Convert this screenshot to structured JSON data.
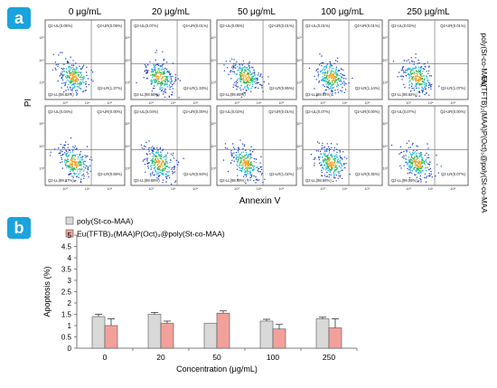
{
  "panel_a": {
    "label": "a",
    "concentrations": [
      "0 μg/mL",
      "20 μg/mL",
      "50 μg/mL",
      "100 μg/mL",
      "250 μg/mL"
    ],
    "row_labels": [
      "poly(St-co-MAA)",
      "Eu(TFTB)₂(MAA)P(Oct)₃@poly(St-co-MAA)"
    ],
    "y_label": "PI",
    "x_label": "Annexin V",
    "quadrant_prefixes": [
      "Q2-UL",
      "Q2-UR",
      "Q2-LL",
      "Q2-LR"
    ],
    "quadrants": [
      [
        {
          "UL": "(0.05%)",
          "UR": "(0.09%)",
          "LL": "(98.62%)",
          "LR": "(1.37%)"
        },
        {
          "UL": "(0.07%)",
          "UR": "(0.01%)",
          "LL": "(98.58%)",
          "LR": "(1.33%)"
        },
        {
          "UL": "(0.05%)",
          "UR": "(0.01%)",
          "LL": "(98.65%)",
          "LR": "(0.85%)"
        },
        {
          "UL": "(0.01%)",
          "UR": "(0.01%)",
          "LL": "(98.84%)",
          "LR": "(1.14%)"
        },
        {
          "UL": "(0.02%)",
          "UR": "(0.01%)",
          "LL": "(98.62%)",
          "LR": "(1.07%)"
        }
      ],
      [
        {
          "UL": "(0.04%)",
          "UR": "(0.00%)",
          "LL": "(99.37%)",
          "LR": "(0.59%)"
        },
        {
          "UL": "(0.04%)",
          "UR": "(0.00%)",
          "LL": "(98.69%)",
          "LR": "(0.94%)"
        },
        {
          "UL": "(0.02%)",
          "UR": "(0.01%)",
          "LL": "(98.89%)",
          "LR": "(1.02%)"
        },
        {
          "UL": "(0.07%)",
          "UR": "(0.00%)",
          "LL": "(98.59%)",
          "LR": "(0.35%)"
        },
        {
          "UL": "(0.07%)",
          "UR": "(0.00%)",
          "LL": "(99.09%)",
          "LR": "(0.07%)"
        }
      ]
    ],
    "axis_ticks": [
      "10³",
      "10⁴",
      "10⁵"
    ]
  },
  "panel_b": {
    "label": "b",
    "legend": [
      "poly(St-co-MAA)",
      "Eu(TFTB)₂(MAA)P(Oct)₃@poly(St-co-MAA)"
    ],
    "colors": {
      "series1": "#d9d9d9",
      "series2": "#f2a19a",
      "edge": "#555555"
    }
  },
  "chart_data": {
    "type": "bar",
    "categories": [
      "0",
      "20",
      "50",
      "100",
      "250"
    ],
    "series": [
      {
        "name": "poly(St-co-MAA)",
        "values": [
          1.4,
          1.5,
          1.1,
          1.2,
          1.3
        ],
        "errors": [
          0.1,
          0.08,
          0.0,
          0.08,
          0.07
        ]
      },
      {
        "name": "Eu(TFTB)₂(MAA)P(Oct)₃@poly(St-co-MAA)",
        "values": [
          1.0,
          1.1,
          1.55,
          0.85,
          0.9
        ],
        "errors": [
          0.3,
          0.1,
          0.1,
          0.2,
          0.4
        ]
      }
    ],
    "xlabel": "Concentration (μg/mL)",
    "ylabel": "Apoptosis (%)",
    "ylim": [
      0,
      5
    ],
    "yticks": [
      "0",
      "0.5",
      "1",
      "1.5",
      "2",
      "2.5",
      "3",
      "3.5",
      "4",
      "4.5",
      "5"
    ],
    "grid": false,
    "legend_position": "top-left"
  }
}
